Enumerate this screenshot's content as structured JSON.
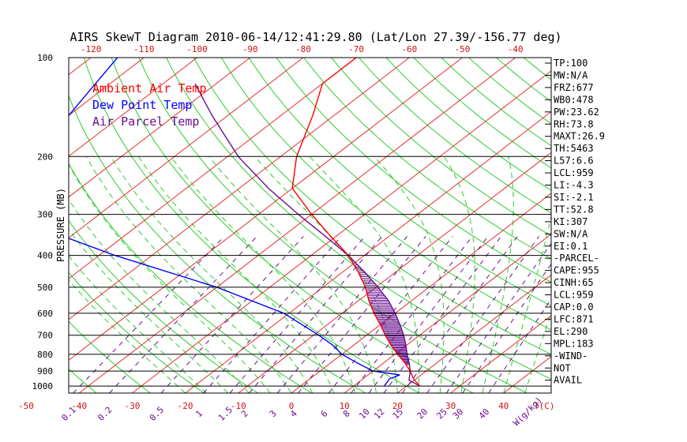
{
  "chart_data": {
    "type": "line",
    "title": "AIRS SkewT Diagram 2010-06-14/12:41:29.80 (Lat/Lon 27.39/-156.77 deg)",
    "ylabel": "PRESSURE (MB)",
    "pressure_labels": [
      "100",
      "200",
      "300",
      "400",
      "500",
      "600",
      "700",
      "800",
      "900",
      "1000"
    ],
    "pressure_levels": [
      100,
      200,
      300,
      400,
      500,
      600,
      700,
      800,
      900,
      1000
    ],
    "top_temp_labels": [
      "-120",
      "-110",
      "-100",
      "-90",
      "-80",
      "-70",
      "-60",
      "-50",
      "-40"
    ],
    "top_temps": [
      -120,
      -110,
      -100,
      -90,
      -80,
      -70,
      -60,
      -50,
      -40
    ],
    "bottom_temp_labels": [
      "-50",
      "-40",
      "-30",
      "-20",
      "-10",
      "0",
      "10",
      "20",
      "30",
      "40"
    ],
    "bottom_temps": [
      -50,
      -40,
      -30,
      -20,
      -10,
      0,
      10,
      20,
      30,
      40
    ],
    "bottom_unit": "T(C)",
    "mixing_ratio_labels": [
      "0.1",
      "0.2",
      "0.5",
      "1",
      "1.5",
      "2",
      "3",
      "4",
      "6",
      "8",
      "10",
      "12",
      "15",
      "20",
      "25",
      "30",
      "40"
    ],
    "mixing_ratio_unit": "W(g/kg)",
    "legend": [
      "Ambient Air Temp",
      "Dew Point Temp",
      "Air Parcel Temp"
    ],
    "legend_colors": [
      "#ff0000",
      "#0000ff",
      "#6a0d91"
    ],
    "series": [
      {
        "name": "Ambient Air Temp",
        "color": "#ff0000",
        "p": [
          1000,
          950,
          900,
          850,
          800,
          750,
          700,
          650,
          600,
          550,
          500,
          450,
          400,
          350,
          300,
          250,
          200,
          150,
          120,
          100
        ],
        "t": [
          22.5,
          19.5,
          17.0,
          14.0,
          10.5,
          7.0,
          3.5,
          0.0,
          -4.0,
          -8.0,
          -12.0,
          -17.0,
          -23.0,
          -31.0,
          -40.0,
          -50.0,
          -57.0,
          -64.0,
          -70.0,
          -70.0
        ]
      },
      {
        "name": "Dew Point Temp",
        "color": "#0000ff",
        "p": [
          1000,
          950,
          925,
          900,
          850,
          800,
          750,
          700,
          600,
          500,
          400,
          300,
          250,
          200,
          150,
          100
        ],
        "t": [
          15.8,
          15.0,
          16.0,
          10.0,
          5.0,
          0.0,
          -4.0,
          -9.0,
          -21.0,
          -40.0,
          -67.0,
          -98.0,
          -102.0,
          -104.0,
          -110.0,
          -115.0
        ]
      },
      {
        "name": "Air Parcel Temp",
        "color": "#6a0d91",
        "p": [
          1000,
          959,
          900,
          850,
          800,
          750,
          700,
          650,
          600,
          550,
          500,
          450,
          400,
          350,
          300,
          250,
          200,
          150,
          120
        ],
        "t": [
          22.5,
          19.0,
          17.0,
          14.8,
          12.3,
          9.8,
          7.0,
          3.7,
          0.0,
          -4.3,
          -9.6,
          -15.8,
          -23.0,
          -32.0,
          -42.5,
          -54.5,
          -68.0,
          -83.0,
          -94.0
        ]
      }
    ],
    "indices": [
      "TP:100",
      "MW:N/A",
      "FRZ:677",
      "WB0:478",
      "PW:23.62",
      "RH:73.8",
      "MAXT:26.9",
      "TH:5463",
      "L57:6.6",
      "LCL:959",
      "LI:-4.3",
      "SI:-2.1",
      "TT:52.8",
      "KI:307",
      "SW:N/A",
      "EI:0.1",
      "-PARCEL-",
      "CAPE:955",
      "CINH:65",
      "LCL:959",
      "CAP:0.0",
      "LFC:871",
      "EL:290",
      "MPL:183",
      "-WIND-",
      "NOT",
      "AVAIL"
    ],
    "colors": {
      "isotherm": "#e53030",
      "dry_adiabat": "#2ecc2e",
      "moist_adiabat": "#2ecc2e",
      "mixing_ratio": "#6a0d91",
      "axis": "#000000"
    }
  }
}
